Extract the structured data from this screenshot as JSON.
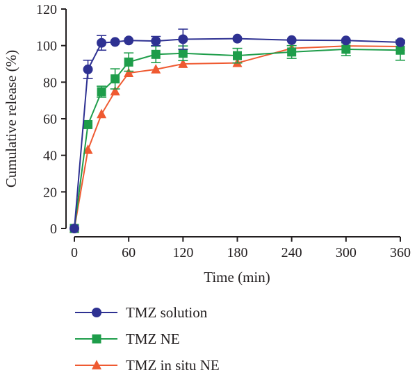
{
  "chart_data": {
    "type": "line",
    "title": "",
    "xlabel": "Time (min)",
    "ylabel": "Cumulative release (%)",
    "xlim": [
      0,
      360
    ],
    "ylim": [
      0,
      120
    ],
    "x_ticks": [
      0,
      60,
      120,
      180,
      240,
      300,
      360
    ],
    "y_ticks": [
      0,
      20,
      40,
      60,
      80,
      100,
      120
    ],
    "grid": false,
    "legend_position": "bottom-left",
    "series": [
      {
        "name": "TMZ solution",
        "color": "#2e3192",
        "marker": "circle",
        "x": [
          0,
          15,
          30,
          45,
          60,
          90,
          120,
          180,
          240,
          300,
          360
        ],
        "y": [
          0,
          87,
          101.5,
          102,
          102.8,
          102.5,
          103.5,
          103.8,
          103,
          102.8,
          101.8
        ],
        "err": [
          0,
          5,
          4,
          0,
          0,
          2.5,
          5.5,
          0,
          0,
          0,
          0
        ]
      },
      {
        "name": "TMZ NE",
        "color": "#1e9d4a",
        "marker": "square",
        "x": [
          0,
          15,
          30,
          45,
          60,
          90,
          120,
          180,
          240,
          300,
          360
        ],
        "y": [
          0,
          56.8,
          74.8,
          81.8,
          91,
          95.2,
          95.8,
          94.5,
          96.5,
          98,
          97.5
        ],
        "err": [
          0,
          0,
          3,
          5.5,
          5,
          4.5,
          4,
          4,
          3.5,
          3.5,
          5.5
        ]
      },
      {
        "name": "TMZ in situ NE",
        "color": "#ef5a31",
        "marker": "triangle",
        "x": [
          0,
          15,
          30,
          45,
          60,
          90,
          120,
          180,
          240,
          300,
          360
        ],
        "y": [
          0,
          43,
          62.5,
          75,
          85,
          87,
          90,
          90.5,
          98.5,
          99.8,
          99.5
        ],
        "err": [
          0,
          0,
          0,
          0,
          0,
          0,
          0,
          0,
          0,
          0,
          0
        ]
      }
    ]
  }
}
